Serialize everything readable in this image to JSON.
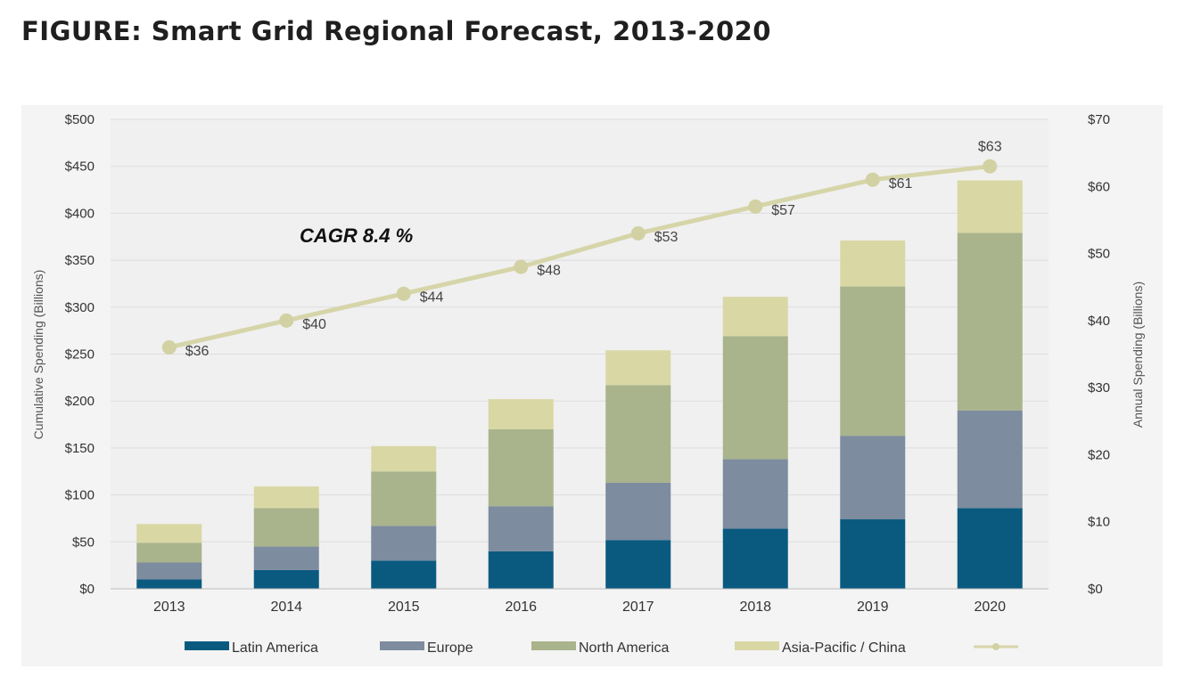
{
  "title": "FIGURE: Smart Grid Regional Forecast, 2013-2020",
  "chart_data": {
    "type": "bar",
    "stacked": true,
    "categories": [
      "2013",
      "2014",
      "2015",
      "2016",
      "2017",
      "2018",
      "2019",
      "2020"
    ],
    "series": [
      {
        "name": "Latin America",
        "color": "#0a5a80",
        "values": [
          10,
          20,
          30,
          40,
          52,
          64,
          74,
          86
        ]
      },
      {
        "name": "Europe",
        "color": "#7d8c9e",
        "values": [
          18,
          25,
          37,
          48,
          61,
          74,
          89,
          104
        ]
      },
      {
        "name": "North America",
        "color": "#a9b38c",
        "values": [
          21,
          41,
          58,
          82,
          104,
          131,
          159,
          189
        ]
      },
      {
        "name": "Asia-Pacific / China",
        "color": "#d9d7a4",
        "values": [
          20,
          23,
          27,
          32,
          37,
          42,
          49,
          56
        ]
      }
    ],
    "line_series": {
      "name": "",
      "axis": "right",
      "color": "#d6d5a9",
      "values": [
        36,
        40,
        44,
        48,
        53,
        57,
        61,
        63
      ],
      "labels": [
        "$36",
        "$40",
        "$44",
        "$48",
        "$53",
        "$57",
        "$61",
        "$63"
      ]
    },
    "ylabel": "Cumulative Spending (Billions)",
    "y2label": "Annual Spending (Billions)",
    "ylim": [
      0,
      500
    ],
    "y2lim": [
      0,
      70
    ],
    "yticks": [
      "$0",
      "$50",
      "$100",
      "$150",
      "$200",
      "$250",
      "$300",
      "$350",
      "$400",
      "$450",
      "$500"
    ],
    "y2ticks": [
      "$0",
      "$10",
      "$20",
      "$30",
      "$40",
      "$50",
      "$60",
      "$70"
    ],
    "annotation": "CAGR 8.4 %",
    "legend_position": "bottom",
    "grid": true
  }
}
